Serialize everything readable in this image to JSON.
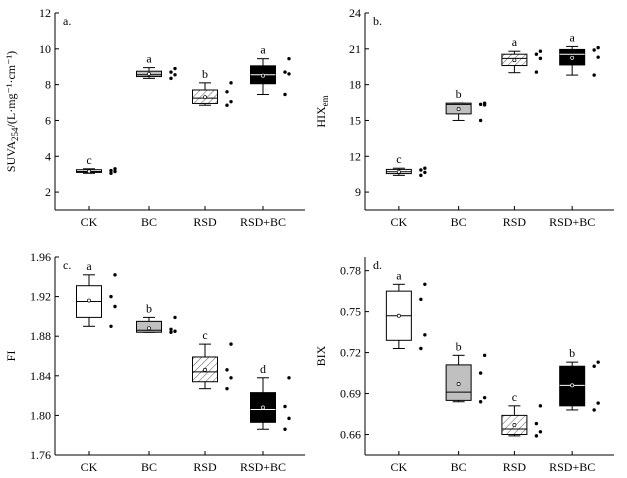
{
  "categories": [
    "CK",
    "BC",
    "RSD",
    "RSD+BC"
  ],
  "colors": {
    "ck": "#ffffff",
    "bc": "#c0c0c0",
    "rsd_hatch": "#555555",
    "rsdbc": "#000000"
  },
  "chart_data": [
    {
      "type": "box",
      "panel": "a.",
      "ylabel": "SUVA254/(L·mg⁻¹·cm⁻¹)",
      "ylabel_main": "SUVA",
      "ylabel_sub": "254",
      "ylabel_rest": "/(L·mg⁻¹·cm⁻¹)",
      "ylim": [
        1,
        12
      ],
      "yticks": [
        2,
        4,
        6,
        8,
        10,
        12
      ],
      "categories": [
        "CK",
        "BC",
        "RSD",
        "RSD+BC"
      ],
      "letters": [
        "c",
        "a",
        "b",
        "a"
      ],
      "boxes": [
        {
          "min": 3.05,
          "q1": 3.1,
          "median": 3.15,
          "q3": 3.25,
          "max": 3.3,
          "mean": 3.16,
          "points": [
            3.05,
            3.15,
            3.2,
            3.3
          ]
        },
        {
          "min": 8.35,
          "q1": 8.45,
          "median": 8.55,
          "q3": 8.75,
          "max": 8.95,
          "mean": 8.6,
          "points": [
            8.35,
            8.55,
            8.7,
            8.9
          ]
        },
        {
          "min": 6.85,
          "q1": 6.95,
          "median": 7.25,
          "q3": 7.7,
          "max": 8.1,
          "mean": 7.3,
          "points": [
            6.85,
            7.05,
            7.6,
            8.1
          ]
        },
        {
          "min": 7.45,
          "q1": 8.05,
          "median": 8.55,
          "q3": 9.05,
          "max": 9.45,
          "mean": 8.5,
          "points": [
            7.45,
            8.6,
            8.7,
            9.45
          ]
        }
      ]
    },
    {
      "type": "box",
      "panel": "b.",
      "ylabel": "HIXem",
      "ylabel_main": "HIX",
      "ylabel_sub": "em",
      "ylabel_rest": "",
      "ylim": [
        7.5,
        24
      ],
      "yticks": [
        9,
        12,
        15,
        18,
        21,
        24
      ],
      "categories": [
        "CK",
        "BC",
        "RSD",
        "RSD+BC"
      ],
      "letters": [
        "c",
        "b",
        "a",
        "a"
      ],
      "boxes": [
        {
          "min": 10.4,
          "q1": 10.55,
          "median": 10.7,
          "q3": 10.9,
          "max": 11.0,
          "mean": 10.7,
          "points": [
            10.4,
            10.65,
            10.85,
            11.0
          ]
        },
        {
          "min": 15.0,
          "q1": 15.55,
          "median": 16.35,
          "q3": 16.45,
          "max": 16.45,
          "mean": 15.95,
          "points": [
            15.0,
            16.3,
            16.35,
            16.45
          ]
        },
        {
          "min": 19.0,
          "q1": 19.6,
          "median": 20.2,
          "q3": 20.55,
          "max": 20.8,
          "mean": 20.05,
          "points": [
            19.05,
            20.2,
            20.55,
            20.8
          ]
        },
        {
          "min": 18.8,
          "q1": 19.65,
          "median": 20.55,
          "q3": 20.95,
          "max": 21.2,
          "mean": 20.25,
          "points": [
            18.8,
            20.3,
            20.9,
            21.1
          ]
        }
      ]
    },
    {
      "type": "box",
      "panel": "c.",
      "ylabel": "FI",
      "ylabel_main": "FI",
      "ylabel_sub": "",
      "ylabel_rest": "",
      "ylim": [
        1.76,
        1.96
      ],
      "yticks": [
        1.76,
        1.8,
        1.84,
        1.88,
        1.92,
        1.96
      ],
      "categories": [
        "CK",
        "BC",
        "RSD",
        "RSD+BC"
      ],
      "letters": [
        "a",
        "b",
        "c",
        "d"
      ],
      "boxes": [
        {
          "min": 1.89,
          "q1": 1.899,
          "median": 1.915,
          "q3": 1.931,
          "max": 1.942,
          "mean": 1.916,
          "points": [
            1.89,
            1.91,
            1.92,
            1.942
          ]
        },
        {
          "min": 1.884,
          "q1": 1.884,
          "median": 1.886,
          "q3": 1.895,
          "max": 1.899,
          "mean": 1.888,
          "points": [
            1.884,
            1.885,
            1.887,
            1.899
          ]
        },
        {
          "min": 1.827,
          "q1": 1.834,
          "median": 1.844,
          "q3": 1.859,
          "max": 1.872,
          "mean": 1.846,
          "points": [
            1.827,
            1.838,
            1.846,
            1.872
          ]
        },
        {
          "min": 1.786,
          "q1": 1.793,
          "median": 1.806,
          "q3": 1.823,
          "max": 1.838,
          "mean": 1.808,
          "points": [
            1.786,
            1.797,
            1.809,
            1.838
          ]
        }
      ]
    },
    {
      "type": "box",
      "panel": "d.",
      "ylabel": "BIX",
      "ylabel_main": "BIX",
      "ylabel_sub": "",
      "ylabel_rest": "",
      "ylim": [
        0.645,
        0.79
      ],
      "yticks": [
        0.66,
        0.69,
        0.72,
        0.75,
        0.78
      ],
      "categories": [
        "CK",
        "BC",
        "RSD",
        "RSD+BC"
      ],
      "letters": [
        "a",
        "b",
        "c",
        "b"
      ],
      "boxes": [
        {
          "min": 0.723,
          "q1": 0.729,
          "median": 0.747,
          "q3": 0.765,
          "max": 0.77,
          "mean": 0.747,
          "points": [
            0.723,
            0.733,
            0.759,
            0.77
          ]
        },
        {
          "min": 0.684,
          "q1": 0.685,
          "median": 0.691,
          "q3": 0.711,
          "max": 0.718,
          "mean": 0.697,
          "points": [
            0.684,
            0.687,
            0.705,
            0.718
          ]
        },
        {
          "min": 0.659,
          "q1": 0.66,
          "median": 0.664,
          "q3": 0.674,
          "max": 0.681,
          "mean": 0.667,
          "points": [
            0.659,
            0.662,
            0.668,
            0.681
          ]
        },
        {
          "min": 0.678,
          "q1": 0.681,
          "median": 0.696,
          "q3": 0.71,
          "max": 0.713,
          "mean": 0.696,
          "points": [
            0.678,
            0.683,
            0.71,
            0.713
          ]
        }
      ]
    }
  ]
}
